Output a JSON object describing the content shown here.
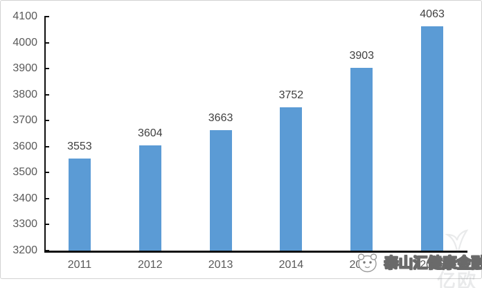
{
  "chart_data": {
    "type": "bar",
    "categories": [
      "2011",
      "2012",
      "2013",
      "2014",
      "2015",
      "2016"
    ],
    "values": [
      3553,
      3604,
      3663,
      3752,
      3903,
      4063
    ],
    "title": "",
    "xlabel": "",
    "ylabel": "",
    "ylim": [
      3200,
      4100
    ],
    "y_ticks": [
      3200,
      3300,
      3400,
      3500,
      3600,
      3700,
      3800,
      3900,
      4000,
      4100
    ],
    "grid": false,
    "legend_position": "none",
    "data_labels": true,
    "bar_color": "#5B9BD5"
  },
  "watermark": {
    "brand_text": "泰山汇健康金融",
    "faint_text": "亿欧",
    "mascot_icon": "panda-mascot-icon"
  },
  "colors": {
    "bar": "#5B9BD5",
    "axis_line": "#0d0d0d",
    "axis_label": "#595959",
    "data_label": "#3f3f3f",
    "frame_border": "#d2d2d2",
    "background": "#ffffff",
    "watermark_text_fill": "#ffffff",
    "watermark_text_outline": "#6a6a6a"
  }
}
